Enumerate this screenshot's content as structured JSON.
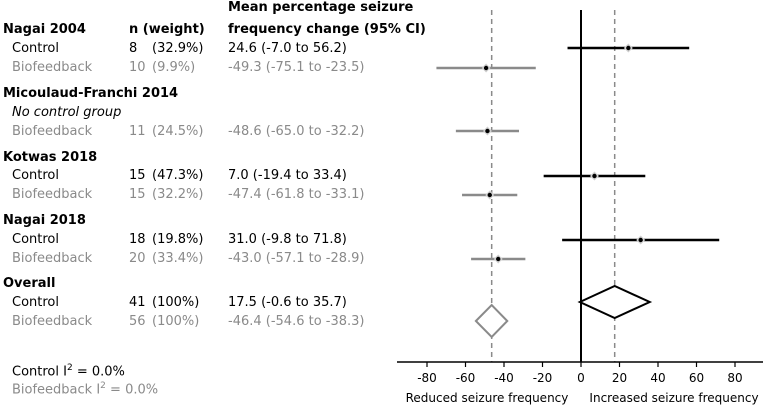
{
  "chart_data": {
    "type": "forest",
    "header": {
      "n_col": "n (weight)",
      "mean_col_line1": "Mean percentage seizure",
      "mean_col_line2": "frequency change (95% CI)"
    },
    "studies": [
      {
        "name": "Nagai 2004",
        "rows": [
          {
            "label": "Control",
            "n": "8",
            "weight": "(32.9%)",
            "ci_text": "24.6 (-7.0 to 56.2)",
            "mean": 24.6,
            "lo": -7.0,
            "hi": 56.2,
            "group": "control"
          },
          {
            "label": "Biofeedback",
            "n": "10",
            "weight": "(9.9%)",
            "ci_text": "-49.3 (-75.1 to -23.5)",
            "mean": -49.3,
            "lo": -75.1,
            "hi": -23.5,
            "group": "biofeedback"
          }
        ]
      },
      {
        "name": "Micoulaud-Franchi 2014",
        "note": "No control group",
        "rows": [
          {
            "label": "Biofeedback",
            "n": "11",
            "weight": "(24.5%)",
            "ci_text": "-48.6 (-65.0 to -32.2)",
            "mean": -48.6,
            "lo": -65.0,
            "hi": -32.2,
            "group": "biofeedback"
          }
        ]
      },
      {
        "name": "Kotwas 2018",
        "rows": [
          {
            "label": "Control",
            "n": "15",
            "weight": "(47.3%)",
            "ci_text": "7.0 (-19.4 to 33.4)",
            "mean": 7.0,
            "lo": -19.4,
            "hi": 33.4,
            "group": "control"
          },
          {
            "label": "Biofeedback",
            "n": "15",
            "weight": "(32.2%)",
            "ci_text": "-47.4 (-61.8 to -33.1)",
            "mean": -47.4,
            "lo": -61.8,
            "hi": -33.1,
            "group": "biofeedback"
          }
        ]
      },
      {
        "name": "Nagai 2018",
        "rows": [
          {
            "label": "Control",
            "n": "18",
            "weight": "(19.8%)",
            "ci_text": "31.0 (-9.8 to 71.8)",
            "mean": 31.0,
            "lo": -9.8,
            "hi": 71.8,
            "group": "control"
          },
          {
            "label": "Biofeedback",
            "n": "20",
            "weight": "(33.4%)",
            "ci_text": "-43.0 (-57.1 to -28.9)",
            "mean": -43.0,
            "lo": -57.1,
            "hi": -28.9,
            "group": "biofeedback"
          }
        ]
      }
    ],
    "overall": {
      "name": "Overall",
      "rows": [
        {
          "label": "Control",
          "n": "41",
          "weight": "(100%)",
          "ci_text": "17.5 (-0.6 to 35.7)",
          "mean": 17.5,
          "lo": -0.6,
          "hi": 35.7,
          "group": "control"
        },
        {
          "label": "Biofeedback",
          "n": "56",
          "weight": "(100%)",
          "ci_text": "-46.4 (-54.6 to -38.3)",
          "mean": -46.4,
          "lo": -54.6,
          "hi": -38.3,
          "group": "biofeedback"
        }
      ]
    },
    "heterogeneity": {
      "control_prefix": "Control I",
      "control_value": " = 0.0%",
      "biofeedback_prefix": "Biofeedback I",
      "biofeedback_value": " = 0.0%",
      "superscript": "2"
    },
    "x_axis": {
      "xlim": [
        -100,
        90
      ],
      "ticks": [
        -80,
        -60,
        -40,
        -20,
        0,
        20,
        40,
        60,
        80
      ],
      "reference_line": 0,
      "label_left": "Reduced seizure frequency",
      "label_right": "Increased seizure frequency"
    },
    "colors": {
      "control": "#000000",
      "biofeedback": "#8a8a8a",
      "dashed": "#8a8a8a"
    }
  }
}
